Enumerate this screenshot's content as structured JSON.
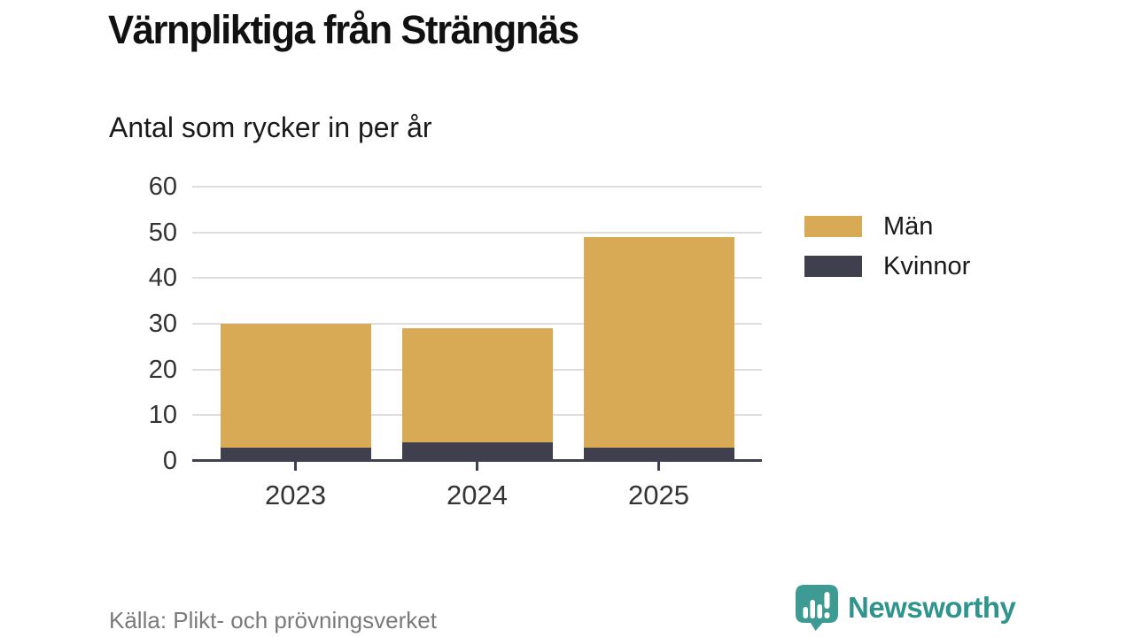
{
  "header": {
    "title": "Värnpliktiga från Strängnäs",
    "subtitle": "Antal som rycker in per år"
  },
  "chart_data": {
    "type": "bar",
    "stacked": true,
    "title": "Värnpliktiga från Strängnäs",
    "subtitle": "Antal som rycker in per år",
    "categories": [
      "2023",
      "2024",
      "2025"
    ],
    "series": [
      {
        "name": "Män",
        "color": "#D9AA55",
        "values": [
          27,
          25,
          46
        ]
      },
      {
        "name": "Kvinnor",
        "color": "#3F3F4E",
        "values": [
          3,
          4,
          3
        ]
      }
    ],
    "stack_order_bottom_to_top": [
      "Kvinnor",
      "Män"
    ],
    "bar_totals": [
      30,
      29,
      49
    ],
    "xlabel": "",
    "ylabel": "",
    "ylim": [
      0,
      60
    ],
    "yticks": [
      0,
      10,
      20,
      30,
      40,
      50,
      60
    ],
    "grid": "horizontal",
    "gridline_color": "#DEDEDE",
    "axis_color": "#3F404F",
    "legend_position": "right"
  },
  "footer": {
    "source": "Källa: Plikt- och prövningsverket",
    "brand": "Newsworthy",
    "brand_color": "#2F948C",
    "brand_icon_color": "#3E9B93"
  }
}
